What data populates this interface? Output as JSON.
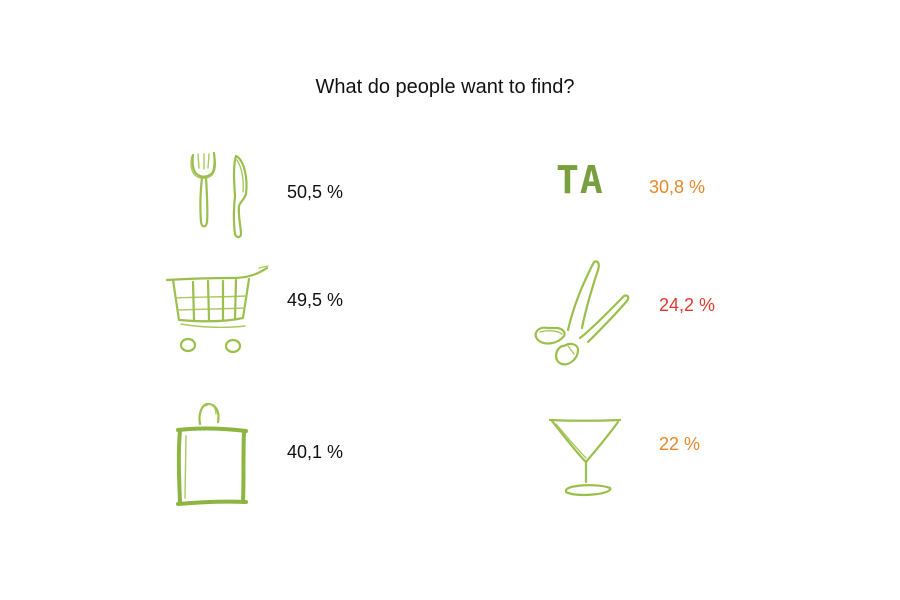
{
  "chart_data": {
    "type": "table",
    "title": "What do people want to find?",
    "unit": "%",
    "items": [
      {
        "category": "restaurants",
        "icon": "fork-knife-icon",
        "value": 50.5,
        "label": "50,5 %",
        "color": "#111111"
      },
      {
        "category": "shopping",
        "icon": "shopping-cart-icon",
        "value": 49.5,
        "label": "49,5 %",
        "color": "#111111"
      },
      {
        "category": "shops",
        "icon": "shopping-bag-icon",
        "value": 40.1,
        "label": "40,1 %",
        "color": "#111111"
      },
      {
        "category": "tourist attractions",
        "icon": "ta-logo-icon",
        "icon_text": "TA",
        "value": 30.8,
        "label": "30,8 %",
        "color": "#e8872b"
      },
      {
        "category": "services",
        "icon": "scissors-icon",
        "value": 24.2,
        "label": "24,2 %",
        "color": "#e03a2f"
      },
      {
        "category": "bars",
        "icon": "cocktail-glass-icon",
        "value": 22,
        "label": "22 %",
        "color": "#e8872b"
      }
    ]
  }
}
